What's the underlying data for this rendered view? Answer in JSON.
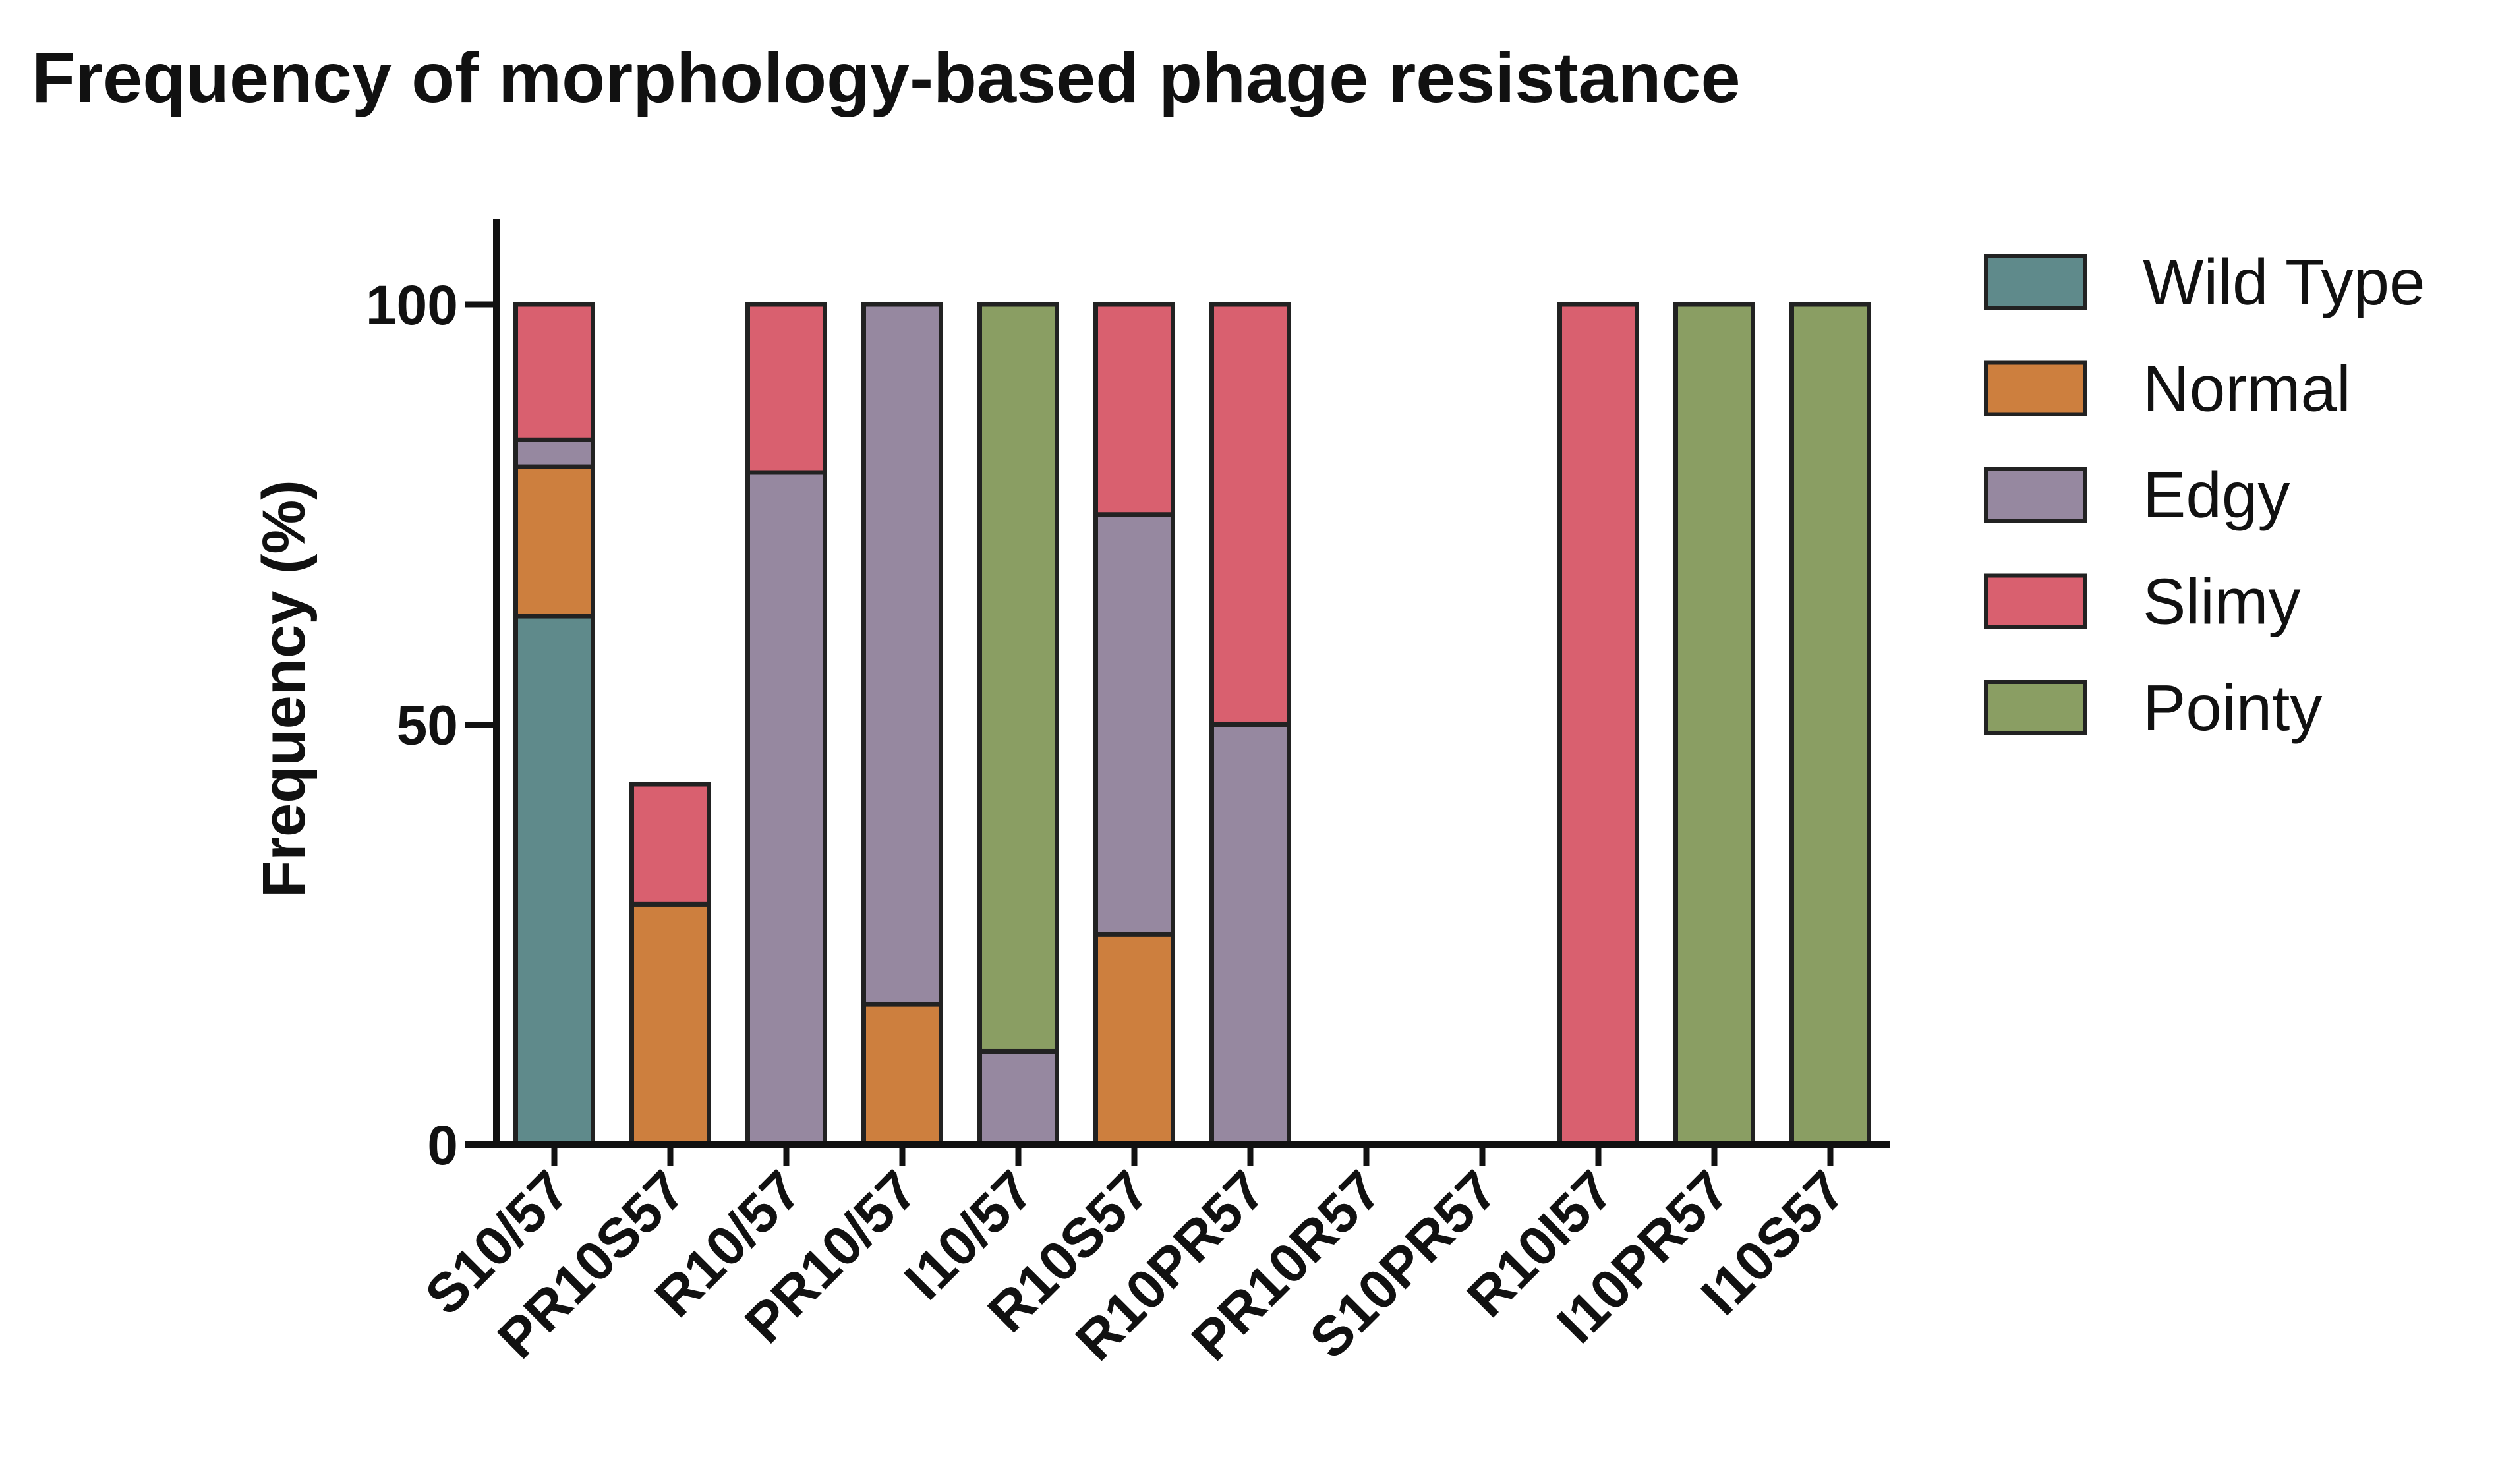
{
  "chart_data": {
    "type": "bar",
    "stacked": true,
    "title": "Frequency of morphology-based phage resistance",
    "xlabel": "",
    "ylabel": "Frequency (%)",
    "ylim": [
      0,
      110
    ],
    "yticks": [
      0,
      50,
      100
    ],
    "grid": false,
    "legend_placement": "top-right",
    "categories": [
      "S10/57",
      "PR10S57",
      "R10/57",
      "PR10/57",
      "I10/57",
      "R10S57",
      "R10PR57",
      "PR10R57",
      "S10PR57",
      "R10I57",
      "I10PR57",
      "I10S57"
    ],
    "series": [
      {
        "name": "Wild Type",
        "color": "#5f8a8b",
        "values": [
          62.9,
          0,
          0,
          0,
          0,
          0,
          0,
          0,
          0,
          0,
          0,
          0
        ]
      },
      {
        "name": "Normal",
        "color": "#cd7f3e",
        "values": [
          17.8,
          28.6,
          0,
          16.7,
          0,
          25,
          0,
          0,
          0,
          0,
          0,
          0
        ]
      },
      {
        "name": "Edgy",
        "color": "#9688a0",
        "values": [
          3.2,
          0,
          80,
          83.3,
          11.1,
          50,
          50,
          0,
          0,
          0,
          0,
          0
        ]
      },
      {
        "name": "Slimy",
        "color": "#d9606f",
        "values": [
          16.1,
          14.3,
          20,
          0,
          0,
          25,
          50,
          0,
          0,
          100,
          0,
          0
        ]
      },
      {
        "name": "Pointy",
        "color": "#8a9e63",
        "values": [
          0,
          0,
          0,
          0,
          88.9,
          0,
          0,
          0,
          0,
          0,
          100,
          100
        ]
      }
    ]
  }
}
